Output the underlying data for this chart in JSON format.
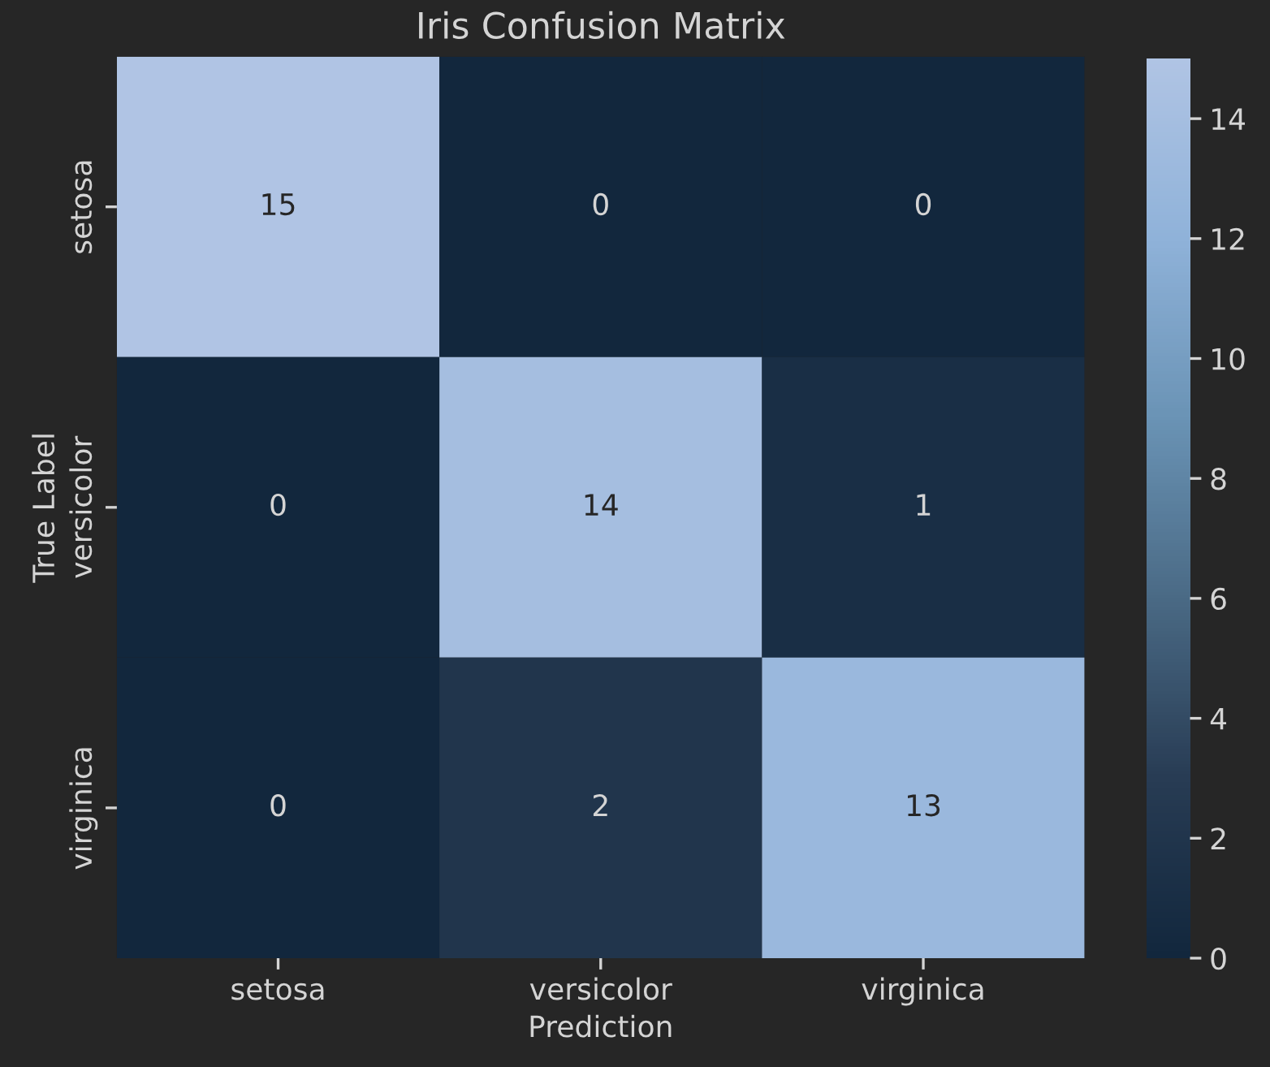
{
  "chart_data": {
    "type": "heatmap",
    "title": "Iris Confusion Matrix",
    "xlabel": "Prediction",
    "ylabel": "True Label",
    "categories": [
      "setosa",
      "versicolor",
      "virginica"
    ],
    "y_categories": [
      "setosa",
      "versicolor",
      "virginica"
    ],
    "cells": [
      [
        15,
        0,
        0
      ],
      [
        0,
        14,
        1
      ],
      [
        0,
        2,
        13
      ]
    ],
    "clim": [
      0,
      15
    ],
    "cticks": [
      0,
      2,
      4,
      6,
      8,
      10,
      12,
      14
    ],
    "data_labels": true
  }
}
